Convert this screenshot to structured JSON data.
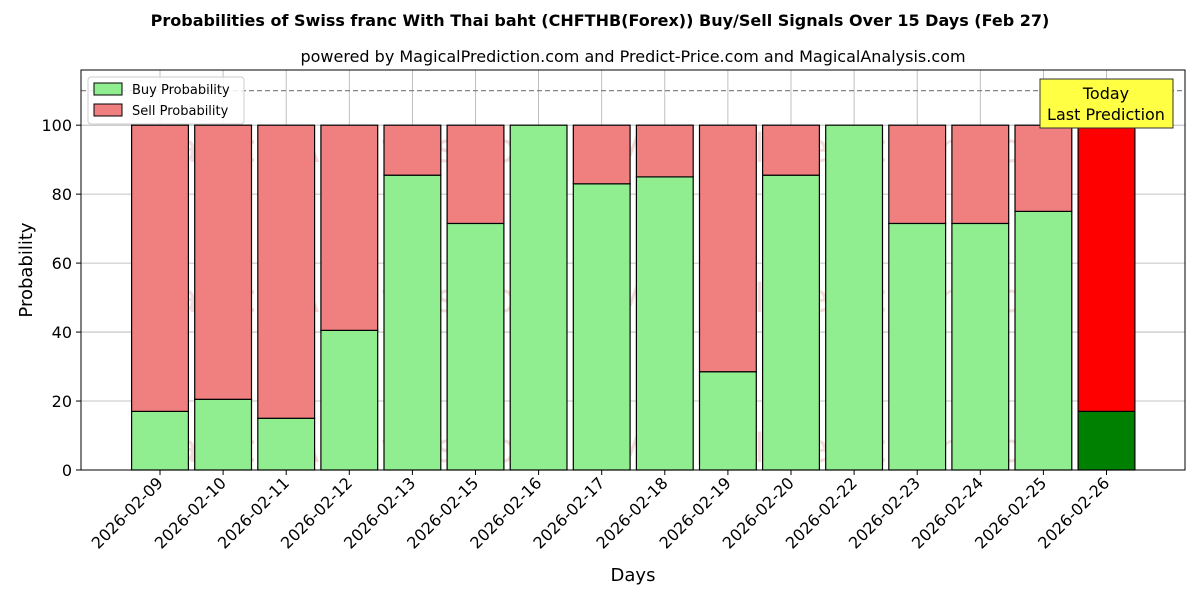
{
  "chart_data": {
    "type": "bar",
    "stacked": true,
    "title": "Probabilities of Swiss franc With Thai baht (CHFTHB(Forex)) Buy/Sell Signals Over 15 Days (Feb 27)",
    "subtitle": "powered by MagicalPrediction.com and Predict-Price.com and MagicalAnalysis.com",
    "xlabel": "Days",
    "ylabel": "Probability",
    "ylim": [
      0,
      116
    ],
    "yticks": [
      0,
      20,
      40,
      60,
      80,
      100
    ],
    "reference_line": 110,
    "grid": true,
    "legend_position": "top-left",
    "categories": [
      "2026-02-09",
      "2026-02-10",
      "2026-02-11",
      "2026-02-12",
      "2026-02-13",
      "2026-02-15",
      "2026-02-16",
      "2026-02-17",
      "2026-02-18",
      "2026-02-19",
      "2026-02-20",
      "2026-02-22",
      "2026-02-23",
      "2026-02-24",
      "2026-02-25",
      "2026-02-26"
    ],
    "series": [
      {
        "name": "Buy Probability",
        "color": "#90ee90",
        "values": [
          17,
          20.5,
          15,
          40.5,
          85.5,
          71.5,
          100,
          83,
          85,
          28.5,
          85.5,
          100,
          71.5,
          71.5,
          75,
          17
        ]
      },
      {
        "name": "Sell Probability",
        "color": "#f08080",
        "values": [
          83,
          79.5,
          85,
          59.5,
          14.5,
          28.5,
          0,
          17,
          15,
          71.5,
          14.5,
          0,
          28.5,
          28.5,
          25,
          83
        ]
      }
    ],
    "highlight": {
      "index": 15,
      "buy_color": "#008000",
      "sell_color": "#ff0000"
    },
    "annotation": {
      "lines": [
        "Today",
        "Last Prediction"
      ],
      "background": "#ffff44"
    },
    "watermarks": [
      "MagicalAnalysis.com",
      "MagicalPrediction.com"
    ]
  }
}
